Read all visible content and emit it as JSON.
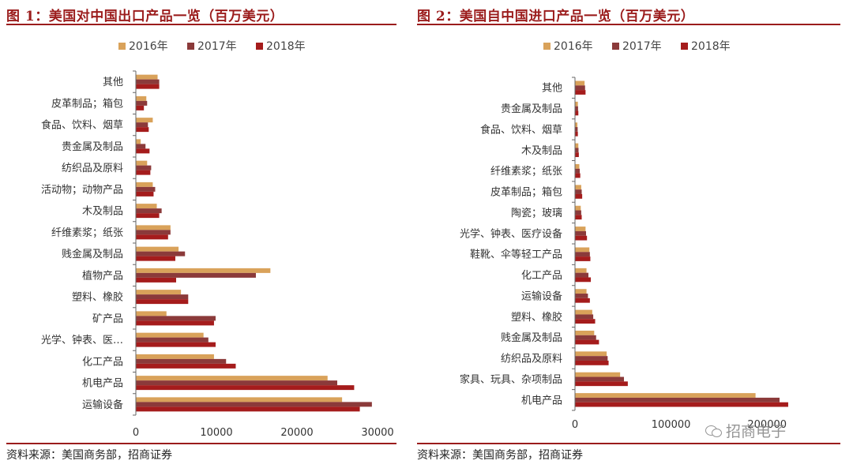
{
  "left": {
    "title": "图 1：美国对中国出口产品一览（百万美元）",
    "source": "资料来源：美国商务部，招商证券",
    "chart_data": {
      "type": "bar",
      "orientation": "horizontal",
      "categories": [
        "其他",
        "皮革制品；箱包",
        "食品、饮料、烟草",
        "贵金属及制品",
        "纺织品及原料",
        "活动物；动物产品",
        "木及制品",
        "纤维素浆；纸张",
        "贱金属及制品",
        "植物产品",
        "塑料、橡胶",
        "矿产品",
        "光学、钟表、医…",
        "化工产品",
        "机电产品",
        "运输设备"
      ],
      "series": [
        {
          "name": "2016年",
          "color": "#d9a25a",
          "values": [
            2700,
            1300,
            2100,
            600,
            1400,
            2100,
            2600,
            4300,
            5300,
            16700,
            5600,
            3800,
            8400,
            9700,
            23800,
            25600
          ]
        },
        {
          "name": "2017年",
          "color": "#8b3a3a",
          "values": [
            2900,
            1400,
            1500,
            1200,
            1900,
            2400,
            3200,
            4300,
            6100,
            14900,
            6500,
            9900,
            9000,
            11200,
            25000,
            29300
          ]
        },
        {
          "name": "2018年",
          "color": "#a51c1c",
          "values": [
            2900,
            1000,
            1600,
            1700,
            1800,
            2200,
            2900,
            4000,
            4900,
            5000,
            6500,
            9700,
            9900,
            12400,
            27100,
            27800
          ]
        }
      ],
      "xlim": [
        0,
        30000
      ],
      "xticks": [
        0,
        10000,
        20000,
        30000
      ],
      "xtick_labels": [
        "0",
        "10000",
        "20000",
        "30000"
      ],
      "legend_position": "top",
      "grid": false
    }
  },
  "right": {
    "title": "图 2：美国自中国进口产品一览（百万美元）",
    "source": "资料来源：美国商务部，招商证券",
    "chart_data": {
      "type": "bar",
      "orientation": "horizontal",
      "categories": [
        "其他",
        "贵金属及制品",
        "食品、饮料、烟草",
        "木及制品",
        "纤维素浆；纸张",
        "皮革制品；箱包",
        "陶瓷；玻璃",
        "光学、钟表、医疗设备",
        "鞋靴、伞等轻工产品",
        "化工产品",
        "运输设备",
        "塑料、橡胶",
        "贱金属及制品",
        "纺织品及原料",
        "家具、玩具、杂项制品",
        "机电产品"
      ],
      "series": [
        {
          "name": "2016年",
          "color": "#d9a25a",
          "values": [
            10000,
            3000,
            2500,
            3500,
            4500,
            6500,
            6000,
            11000,
            15000,
            12000,
            12000,
            18000,
            20000,
            33000,
            47000,
            188000
          ]
        },
        {
          "name": "2017年",
          "color": "#8b3a3a",
          "values": [
            10500,
            3200,
            2800,
            3700,
            5000,
            7000,
            6500,
            11500,
            15500,
            14000,
            13500,
            19000,
            22000,
            34000,
            51000,
            213000
          ]
        },
        {
          "name": "2018年",
          "color": "#a51c1c",
          "values": [
            11000,
            3500,
            3000,
            4000,
            5500,
            7500,
            7000,
            12500,
            16000,
            16500,
            15500,
            21000,
            25000,
            35000,
            55000,
            222000
          ]
        }
      ],
      "xlim": [
        0,
        250000
      ],
      "xticks": [
        0,
        100000,
        200000
      ],
      "xtick_labels": [
        "0",
        "100000",
        "200000"
      ],
      "legend_position": "top",
      "grid": false
    }
  },
  "watermark": {
    "text": "招商电子",
    "icon": "wechat-icon"
  }
}
